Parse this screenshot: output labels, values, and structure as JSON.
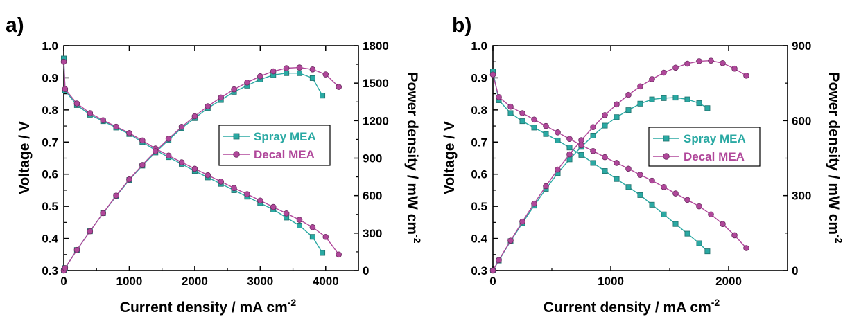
{
  "chart_data": [
    {
      "panel_label": "a)",
      "type": "line",
      "xlabel": "Current density / mA cm",
      "xlabel_sup": "-2",
      "ylabel_left": "Voltage / V",
      "ylabel_right": "Power density / mW cm",
      "ylabel_right_sup": "-2",
      "xlim": [
        0,
        4500
      ],
      "xticks": [
        "0",
        "1000",
        "2000",
        "3000",
        "4000"
      ],
      "ylim_left": [
        0.3,
        1.0
      ],
      "yticks_left": [
        "0.3",
        "0.4",
        "0.5",
        "0.6",
        "0.7",
        "0.8",
        "0.9",
        "1.0"
      ],
      "ylim_right": [
        0,
        1800
      ],
      "yticks_right": [
        "0",
        "300",
        "600",
        "900",
        "1200",
        "1500",
        "1800"
      ],
      "legend": [
        "Spray MEA",
        "Decal MEA"
      ],
      "legend_position": "center-right",
      "grid": false,
      "series": [
        {
          "name": "Spray MEA",
          "color": "#2aa9a3",
          "marker": "square",
          "voltage": [
            [
              0,
              0.96
            ],
            [
              20,
              0.86
            ],
            [
              200,
              0.815
            ],
            [
              400,
              0.785
            ],
            [
              600,
              0.765
            ],
            [
              800,
              0.745
            ],
            [
              1000,
              0.725
            ],
            [
              1200,
              0.7
            ],
            [
              1400,
              0.675
            ],
            [
              1600,
              0.653
            ],
            [
              1800,
              0.632
            ],
            [
              2000,
              0.61
            ],
            [
              2200,
              0.59
            ],
            [
              2400,
              0.57
            ],
            [
              2600,
              0.55
            ],
            [
              2800,
              0.53
            ],
            [
              3000,
              0.51
            ],
            [
              3200,
              0.49
            ],
            [
              3400,
              0.465
            ],
            [
              3600,
              0.44
            ],
            [
              3800,
              0.405
            ],
            [
              3950,
              0.355
            ]
          ],
          "power": [
            [
              0,
              0
            ],
            [
              20,
              20
            ],
            [
              200,
              165
            ],
            [
              400,
              315
            ],
            [
              600,
              460
            ],
            [
              800,
              595
            ],
            [
              1000,
              725
            ],
            [
              1200,
              840
            ],
            [
              1400,
              945
            ],
            [
              1600,
              1045
            ],
            [
              1800,
              1140
            ],
            [
              2000,
              1220
            ],
            [
              2200,
              1300
            ],
            [
              2400,
              1365
            ],
            [
              2600,
              1430
            ],
            [
              2800,
              1480
            ],
            [
              3000,
              1530
            ],
            [
              3200,
              1565
            ],
            [
              3400,
              1580
            ],
            [
              3600,
              1580
            ],
            [
              3800,
              1540
            ],
            [
              3950,
              1400
            ]
          ]
        },
        {
          "name": "Decal MEA",
          "color": "#b0479a",
          "marker": "circle",
          "voltage": [
            [
              0,
              0.95
            ],
            [
              20,
              0.865
            ],
            [
              200,
              0.82
            ],
            [
              400,
              0.79
            ],
            [
              600,
              0.768
            ],
            [
              800,
              0.748
            ],
            [
              1000,
              0.728
            ],
            [
              1200,
              0.705
            ],
            [
              1400,
              0.68
            ],
            [
              1600,
              0.658
            ],
            [
              1800,
              0.637
            ],
            [
              2000,
              0.617
            ],
            [
              2200,
              0.597
            ],
            [
              2400,
              0.577
            ],
            [
              2600,
              0.557
            ],
            [
              2800,
              0.538
            ],
            [
              3000,
              0.518
            ],
            [
              3200,
              0.498
            ],
            [
              3400,
              0.478
            ],
            [
              3600,
              0.458
            ],
            [
              3800,
              0.435
            ],
            [
              4000,
              0.405
            ],
            [
              4200,
              0.35
            ]
          ],
          "power": [
            [
              0,
              0
            ],
            [
              20,
              20
            ],
            [
              200,
              165
            ],
            [
              400,
              315
            ],
            [
              600,
              460
            ],
            [
              800,
              600
            ],
            [
              1000,
              730
            ],
            [
              1200,
              845
            ],
            [
              1400,
              955
            ],
            [
              1600,
              1055
            ],
            [
              1800,
              1150
            ],
            [
              2000,
              1235
            ],
            [
              2200,
              1315
            ],
            [
              2400,
              1385
            ],
            [
              2600,
              1450
            ],
            [
              2800,
              1505
            ],
            [
              3000,
              1555
            ],
            [
              3200,
              1595
            ],
            [
              3400,
              1620
            ],
            [
              3600,
              1625
            ],
            [
              3800,
              1610
            ],
            [
              4000,
              1570
            ],
            [
              4200,
              1470
            ]
          ]
        }
      ]
    },
    {
      "panel_label": "b)",
      "type": "line",
      "xlabel": "Current density / mA cm",
      "xlabel_sup": "-2",
      "ylabel_left": "Voltage / V",
      "ylabel_right": "Power density / mW cm",
      "ylabel_right_sup": "-2",
      "xlim": [
        0,
        2500
      ],
      "xticks": [
        "0",
        "1000",
        "2000"
      ],
      "ylim_left": [
        0.3,
        1.0
      ],
      "yticks_left": [
        "0.3",
        "0.4",
        "0.5",
        "0.6",
        "0.7",
        "0.8",
        "0.9",
        "1.0"
      ],
      "ylim_right": [
        0,
        900
      ],
      "yticks_right": [
        "0",
        "300",
        "600",
        "900"
      ],
      "legend": [
        "Spray MEA",
        "Decal MEA"
      ],
      "legend_position": "center-right",
      "grid": false,
      "series": [
        {
          "name": "Spray MEA",
          "color": "#2aa9a3",
          "marker": "square",
          "voltage": [
            [
              0,
              0.92
            ],
            [
              50,
              0.83
            ],
            [
              150,
              0.79
            ],
            [
              250,
              0.765
            ],
            [
              350,
              0.745
            ],
            [
              450,
              0.725
            ],
            [
              550,
              0.705
            ],
            [
              650,
              0.683
            ],
            [
              750,
              0.66
            ],
            [
              850,
              0.635
            ],
            [
              950,
              0.61
            ],
            [
              1050,
              0.585
            ],
            [
              1150,
              0.56
            ],
            [
              1250,
              0.535
            ],
            [
              1350,
              0.505
            ],
            [
              1450,
              0.475
            ],
            [
              1550,
              0.445
            ],
            [
              1650,
              0.415
            ],
            [
              1750,
              0.385
            ],
            [
              1820,
              0.36
            ]
          ],
          "power": [
            [
              0,
              0
            ],
            [
              50,
              40
            ],
            [
              150,
              118
            ],
            [
              250,
              190
            ],
            [
              350,
              260
            ],
            [
              450,
              327
            ],
            [
              550,
              390
            ],
            [
              650,
              445
            ],
            [
              750,
              495
            ],
            [
              850,
              540
            ],
            [
              950,
              580
            ],
            [
              1050,
              614
            ],
            [
              1150,
              642
            ],
            [
              1250,
              668
            ],
            [
              1350,
              685
            ],
            [
              1450,
              690
            ],
            [
              1550,
              692
            ],
            [
              1650,
              685
            ],
            [
              1750,
              670
            ],
            [
              1820,
              650
            ]
          ]
        },
        {
          "name": "Decal MEA",
          "color": "#b0479a",
          "marker": "circle",
          "voltage": [
            [
              0,
              0.91
            ],
            [
              50,
              0.84
            ],
            [
              150,
              0.81
            ],
            [
              250,
              0.79
            ],
            [
              350,
              0.77
            ],
            [
              450,
              0.75
            ],
            [
              550,
              0.73
            ],
            [
              650,
              0.71
            ],
            [
              750,
              0.69
            ],
            [
              850,
              0.672
            ],
            [
              950,
              0.653
            ],
            [
              1050,
              0.635
            ],
            [
              1150,
              0.617
            ],
            [
              1250,
              0.598
            ],
            [
              1350,
              0.58
            ],
            [
              1450,
              0.56
            ],
            [
              1550,
              0.54
            ],
            [
              1650,
              0.52
            ],
            [
              1750,
              0.5
            ],
            [
              1850,
              0.475
            ],
            [
              1950,
              0.445
            ],
            [
              2050,
              0.41
            ],
            [
              2150,
              0.37
            ]
          ],
          "power": [
            [
              0,
              0
            ],
            [
              50,
              42
            ],
            [
              150,
              120
            ],
            [
              250,
              196
            ],
            [
              350,
              268
            ],
            [
              450,
              338
            ],
            [
              550,
              404
            ],
            [
              650,
              465
            ],
            [
              750,
              522
            ],
            [
              850,
              574
            ],
            [
              950,
              622
            ],
            [
              1050,
              665
            ],
            [
              1150,
              703
            ],
            [
              1250,
              737
            ],
            [
              1350,
              766
            ],
            [
              1450,
              792
            ],
            [
              1550,
              812
            ],
            [
              1650,
              828
            ],
            [
              1750,
              838
            ],
            [
              1850,
              840
            ],
            [
              1950,
              830
            ],
            [
              2050,
              808
            ],
            [
              2150,
              780
            ]
          ]
        }
      ]
    }
  ]
}
